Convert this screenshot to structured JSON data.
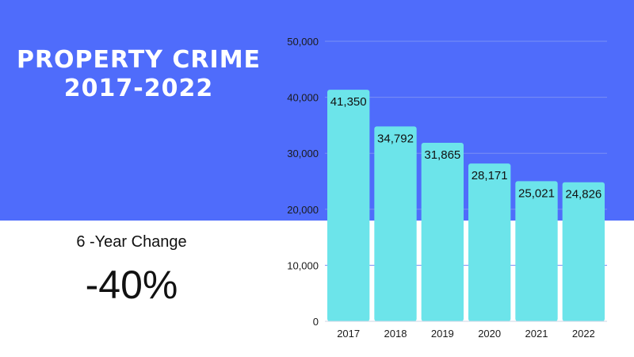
{
  "title": {
    "line1": "PROPERTY CRIME",
    "line2": "2017-2022"
  },
  "summary": {
    "label": "6 -Year Change",
    "value": "-40%"
  },
  "colors": {
    "band": "#4f6cfb",
    "bar": "#6ce4ea",
    "grid": "#7a8ff5",
    "text": "#111111"
  },
  "chart_data": {
    "type": "bar",
    "categories": [
      "2017",
      "2018",
      "2019",
      "2020",
      "2021",
      "2022"
    ],
    "values": [
      41350,
      34792,
      31865,
      28171,
      25021,
      24826
    ],
    "data_labels": [
      "41,350",
      "34,792",
      "31,865",
      "28,171",
      "25,021",
      "24,826"
    ],
    "y_ticks": [
      0,
      10000,
      20000,
      30000,
      40000,
      50000
    ],
    "y_tick_labels": [
      "0",
      "10,000",
      "20,000",
      "30,000",
      "40,000",
      "50,000"
    ],
    "ylim": [
      0,
      50000
    ],
    "grid": true,
    "legend": "none"
  }
}
